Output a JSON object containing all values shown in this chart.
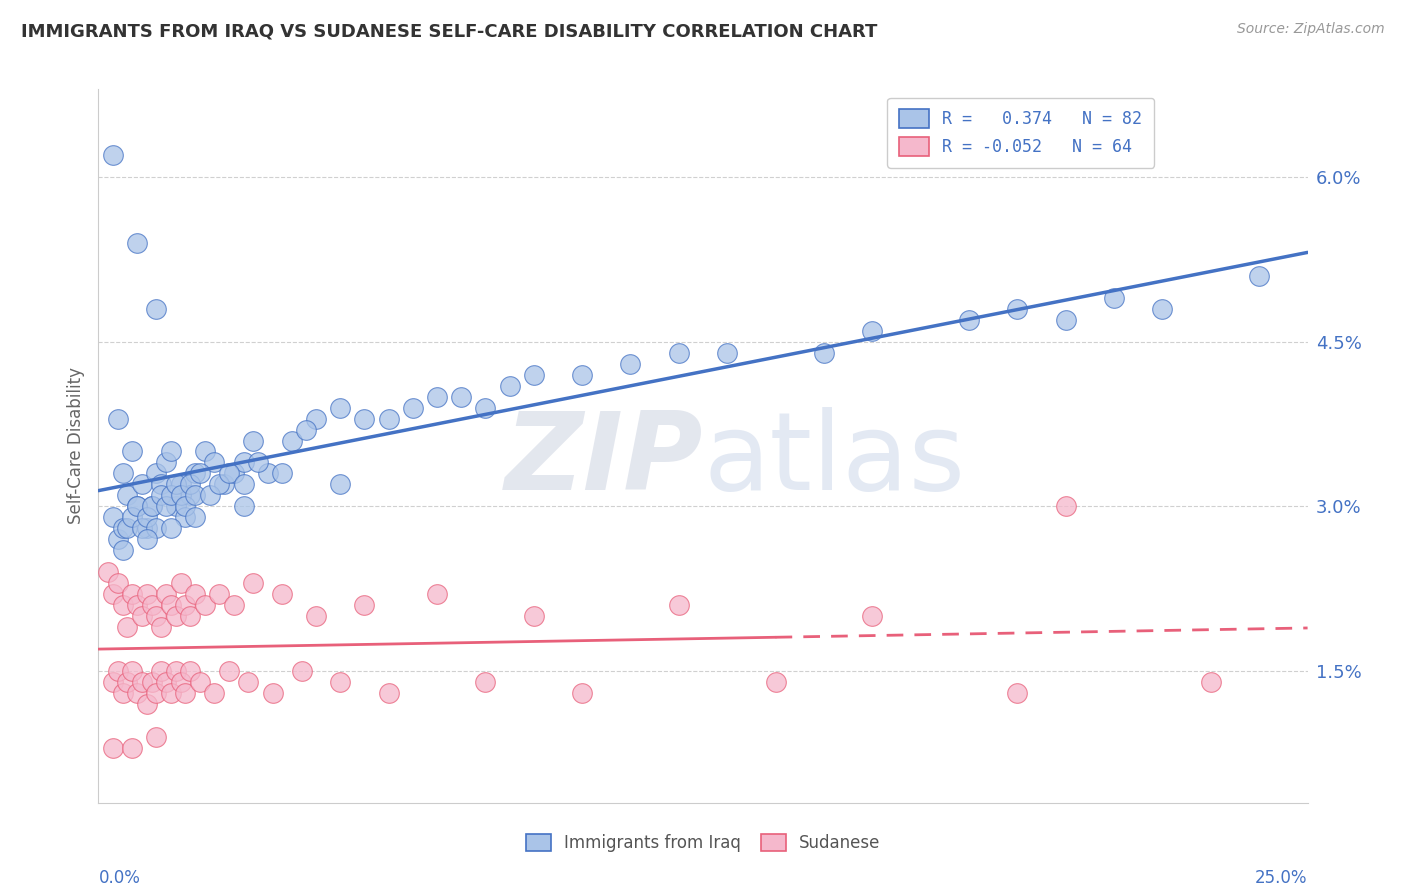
{
  "title": "IMMIGRANTS FROM IRAQ VS SUDANESE SELF-CARE DISABILITY CORRELATION CHART",
  "source": "Source: ZipAtlas.com",
  "ylabel": "Self-Care Disability",
  "xmin": 0.0,
  "xmax": 0.25,
  "ymin": 0.003,
  "ymax": 0.068,
  "right_ytick_vals": [
    0.015,
    0.03,
    0.045,
    0.06
  ],
  "right_ytick_labels": [
    "1.5%",
    "3.0%",
    "4.5%",
    "6.0%"
  ],
  "legend1_r": "0.374",
  "legend1_n": "82",
  "legend2_r": "-0.052",
  "legend2_n": "64",
  "scatter1_color": "#aac4e8",
  "scatter2_color": "#f5b8cc",
  "line1_color": "#4472c4",
  "line2_color": "#e8607a",
  "watermark_zip": "ZIP",
  "watermark_atlas": "atlas",
  "background_color": "#ffffff",
  "grid_color": "#d0d0d0",
  "iraq_x": [
    0.003,
    0.008,
    0.012,
    0.004,
    0.005,
    0.006,
    0.007,
    0.008,
    0.009,
    0.01,
    0.011,
    0.012,
    0.013,
    0.014,
    0.015,
    0.016,
    0.017,
    0.018,
    0.019,
    0.02,
    0.022,
    0.024,
    0.026,
    0.028,
    0.03,
    0.032,
    0.035,
    0.04,
    0.045,
    0.05,
    0.06,
    0.07,
    0.08,
    0.09,
    0.1,
    0.12,
    0.15,
    0.18,
    0.2,
    0.22,
    0.003,
    0.004,
    0.005,
    0.006,
    0.007,
    0.008,
    0.009,
    0.01,
    0.011,
    0.012,
    0.013,
    0.014,
    0.015,
    0.016,
    0.017,
    0.018,
    0.019,
    0.02,
    0.021,
    0.023,
    0.025,
    0.027,
    0.03,
    0.033,
    0.038,
    0.043,
    0.055,
    0.065,
    0.075,
    0.085,
    0.11,
    0.13,
    0.16,
    0.19,
    0.21,
    0.24,
    0.005,
    0.01,
    0.015,
    0.02,
    0.03,
    0.05
  ],
  "iraq_y": [
    0.062,
    0.054,
    0.048,
    0.038,
    0.033,
    0.031,
    0.035,
    0.03,
    0.032,
    0.028,
    0.03,
    0.033,
    0.032,
    0.034,
    0.035,
    0.03,
    0.032,
    0.029,
    0.031,
    0.033,
    0.035,
    0.034,
    0.032,
    0.033,
    0.034,
    0.036,
    0.033,
    0.036,
    0.038,
    0.039,
    0.038,
    0.04,
    0.039,
    0.042,
    0.042,
    0.044,
    0.044,
    0.047,
    0.047,
    0.048,
    0.029,
    0.027,
    0.028,
    0.028,
    0.029,
    0.03,
    0.028,
    0.029,
    0.03,
    0.028,
    0.031,
    0.03,
    0.031,
    0.032,
    0.031,
    0.03,
    0.032,
    0.031,
    0.033,
    0.031,
    0.032,
    0.033,
    0.032,
    0.034,
    0.033,
    0.037,
    0.038,
    0.039,
    0.04,
    0.041,
    0.043,
    0.044,
    0.046,
    0.048,
    0.049,
    0.051,
    0.026,
    0.027,
    0.028,
    0.029,
    0.03,
    0.032
  ],
  "sudan_x": [
    0.002,
    0.003,
    0.004,
    0.005,
    0.006,
    0.007,
    0.008,
    0.009,
    0.01,
    0.011,
    0.012,
    0.013,
    0.014,
    0.015,
    0.016,
    0.017,
    0.018,
    0.019,
    0.02,
    0.022,
    0.025,
    0.028,
    0.032,
    0.038,
    0.045,
    0.055,
    0.07,
    0.09,
    0.12,
    0.16,
    0.003,
    0.004,
    0.005,
    0.006,
    0.007,
    0.008,
    0.009,
    0.01,
    0.011,
    0.012,
    0.013,
    0.014,
    0.015,
    0.016,
    0.017,
    0.018,
    0.019,
    0.021,
    0.024,
    0.027,
    0.031,
    0.036,
    0.042,
    0.05,
    0.06,
    0.08,
    0.1,
    0.14,
    0.19,
    0.23,
    0.003,
    0.007,
    0.012,
    0.2
  ],
  "sudan_y": [
    0.024,
    0.022,
    0.023,
    0.021,
    0.019,
    0.022,
    0.021,
    0.02,
    0.022,
    0.021,
    0.02,
    0.019,
    0.022,
    0.021,
    0.02,
    0.023,
    0.021,
    0.02,
    0.022,
    0.021,
    0.022,
    0.021,
    0.023,
    0.022,
    0.02,
    0.021,
    0.022,
    0.02,
    0.021,
    0.02,
    0.014,
    0.015,
    0.013,
    0.014,
    0.015,
    0.013,
    0.014,
    0.012,
    0.014,
    0.013,
    0.015,
    0.014,
    0.013,
    0.015,
    0.014,
    0.013,
    0.015,
    0.014,
    0.013,
    0.015,
    0.014,
    0.013,
    0.015,
    0.014,
    0.013,
    0.014,
    0.013,
    0.014,
    0.013,
    0.014,
    0.008,
    0.008,
    0.009,
    0.03
  ]
}
